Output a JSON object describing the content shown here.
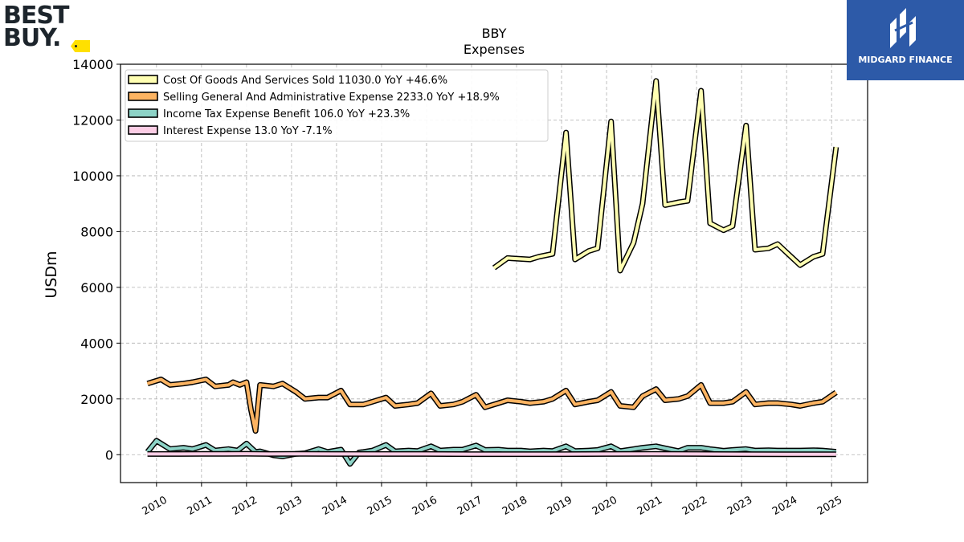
{
  "logos": {
    "left_brand": "BEST BUY",
    "right_brand": "MIDGARD FINANCE"
  },
  "chart_data": {
    "type": "line",
    "title": "BBY",
    "subtitle": "Expenses",
    "xlabel": "",
    "ylabel": "USDm",
    "ylim": [
      -1000,
      14000
    ],
    "yticks": [
      0,
      2000,
      4000,
      6000,
      8000,
      10000,
      12000,
      14000
    ],
    "xlim": [
      2009.2,
      2025.8
    ],
    "xticks": [
      "2010",
      "2011",
      "2012",
      "2013",
      "2014",
      "2015",
      "2016",
      "2017",
      "2018",
      "2019",
      "2020",
      "2021",
      "2022",
      "2023",
      "2024",
      "2025"
    ],
    "grid": true,
    "legend_position": "top-left",
    "series": [
      {
        "name": "Cost Of Goods And Services Sold  11030.0 YoY +46.6%",
        "color": "#ffffb3",
        "x": [
          2017.5,
          2017.8,
          2018.3,
          2018.5,
          2018.8,
          2019.1,
          2019.3,
          2019.6,
          2019.8,
          2020.1,
          2020.3,
          2020.6,
          2020.8,
          2021.1,
          2021.3,
          2021.6,
          2021.8,
          2022.1,
          2022.3,
          2022.6,
          2022.8,
          2023.1,
          2023.3,
          2023.6,
          2023.8,
          2024.1,
          2024.3,
          2024.6,
          2024.8,
          2025.1
        ],
        "values": [
          6700,
          7050,
          7000,
          7100,
          7200,
          11550,
          7000,
          7300,
          7400,
          11950,
          6600,
          7600,
          9000,
          13400,
          8950,
          9050,
          9100,
          13050,
          8300,
          8050,
          8200,
          11800,
          7350,
          7400,
          7550,
          7100,
          6800,
          7100,
          7200,
          11030
        ]
      },
      {
        "name": "Selling General And Administrative Expense  2233.0 YoY +18.9%",
        "color": "#fdb462",
        "x": [
          2009.8,
          2010.1,
          2010.3,
          2010.6,
          2010.8,
          2011.1,
          2011.3,
          2011.6,
          2011.7,
          2011.85,
          2012.0,
          2012.1,
          2012.2,
          2012.3,
          2012.6,
          2012.8,
          2013.1,
          2013.3,
          2013.6,
          2013.8,
          2014.1,
          2014.3,
          2014.6,
          2014.8,
          2015.1,
          2015.3,
          2015.6,
          2015.8,
          2016.1,
          2016.3,
          2016.6,
          2016.8,
          2017.1,
          2017.3,
          2017.6,
          2017.8,
          2018.1,
          2018.3,
          2018.6,
          2018.8,
          2019.1,
          2019.3,
          2019.6,
          2019.8,
          2020.1,
          2020.3,
          2020.6,
          2020.8,
          2021.1,
          2021.3,
          2021.6,
          2021.8,
          2022.1,
          2022.3,
          2022.6,
          2022.8,
          2023.1,
          2023.3,
          2023.6,
          2023.8,
          2024.1,
          2024.3,
          2024.6,
          2024.8,
          2025.1
        ],
        "values": [
          2550,
          2700,
          2500,
          2550,
          2600,
          2700,
          2450,
          2500,
          2600,
          2500,
          2600,
          1600,
          850,
          2500,
          2450,
          2550,
          2250,
          2000,
          2050,
          2050,
          2300,
          1800,
          1800,
          1900,
          2050,
          1750,
          1800,
          1850,
          2200,
          1750,
          1800,
          1900,
          2150,
          1700,
          1850,
          1950,
          1900,
          1850,
          1900,
          2000,
          2300,
          1800,
          1900,
          1950,
          2250,
          1750,
          1700,
          2100,
          2350,
          1950,
          2000,
          2100,
          2500,
          1850,
          1850,
          1900,
          2250,
          1800,
          1850,
          1850,
          1800,
          1750,
          1850,
          1900,
          2233
        ]
      },
      {
        "name": "Income Tax Expense Benefit  106.0 YoY +23.3%",
        "color": "#8dd3c7",
        "x": [
          2009.8,
          2010.0,
          2010.3,
          2010.6,
          2010.8,
          2011.1,
          2011.3,
          2011.6,
          2011.8,
          2012.0,
          2012.2,
          2012.3,
          2012.6,
          2012.8,
          2013.1,
          2013.3,
          2013.6,
          2013.8,
          2014.1,
          2014.3,
          2014.5,
          2014.6,
          2014.8,
          2015.1,
          2015.3,
          2015.6,
          2015.8,
          2016.1,
          2016.3,
          2016.6,
          2016.8,
          2017.1,
          2017.3,
          2017.6,
          2017.8,
          2018.1,
          2018.3,
          2018.6,
          2018.8,
          2019.1,
          2019.3,
          2019.6,
          2019.8,
          2020.1,
          2020.3,
          2020.6,
          2020.8,
          2021.1,
          2021.3,
          2021.6,
          2021.8,
          2022.1,
          2022.3,
          2022.6,
          2022.8,
          2023.1,
          2023.3,
          2023.6,
          2023.8,
          2024.1,
          2024.3,
          2024.6,
          2024.8,
          2025.1
        ],
        "values": [
          100,
          500,
          200,
          250,
          200,
          350,
          150,
          200,
          150,
          400,
          100,
          120,
          -20,
          -60,
          30,
          50,
          200,
          100,
          180,
          -330,
          80,
          100,
          150,
          350,
          120,
          150,
          130,
          300,
          150,
          180,
          180,
          330,
          170,
          180,
          150,
          150,
          120,
          150,
          130,
          300,
          130,
          150,
          170,
          300,
          130,
          200,
          250,
          300,
          230,
          130,
          250,
          250,
          200,
          140,
          170,
          200,
          150,
          160,
          150,
          150,
          150,
          160,
          150,
          106
        ]
      },
      {
        "name": "Interest Expense  13.0 YoY -7.1%",
        "color": "#fccde5",
        "x": [
          2009.8,
          2010.5,
          2011.0,
          2011.5,
          2012.0,
          2012.5,
          2013.0,
          2014.0,
          2015.0,
          2016.0,
          2017.0,
          2018.0,
          2019.0,
          2020.0,
          2021.0,
          2022.0,
          2023.0,
          2024.0,
          2025.1
        ],
        "values": [
          25,
          25,
          30,
          30,
          35,
          25,
          30,
          25,
          25,
          25,
          20,
          20,
          20,
          25,
          30,
          25,
          20,
          15,
          13
        ]
      }
    ]
  }
}
